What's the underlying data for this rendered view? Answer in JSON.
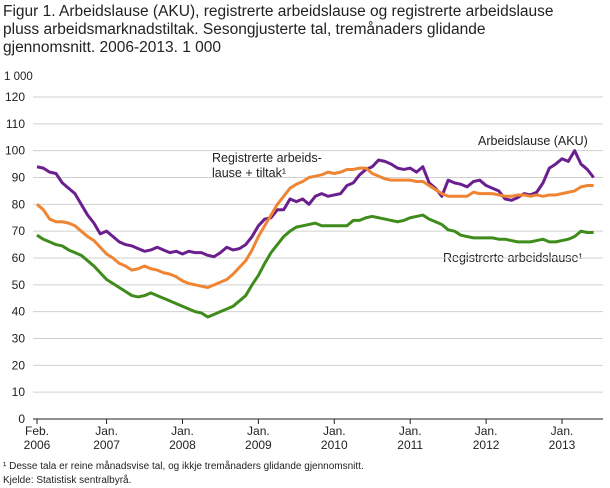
{
  "chart_data": {
    "type": "line",
    "title_lines": [
      "Figur 1. Arbeidslause (AKU), registrerte arbeidslause og registrerte arbeidslause",
      "pluss arbeidsmarknadstiltak. Sesongjusterte tal, tremånaders glidande",
      "gjennomsnitt. 2006-2013. 1 000"
    ],
    "y_unit": "1 000",
    "categories": [
      "Feb. 2006",
      null,
      null,
      null,
      null,
      null,
      null,
      null,
      null,
      null,
      null,
      "Jan. 2007",
      null,
      null,
      null,
      null,
      null,
      null,
      null,
      null,
      null,
      null,
      null,
      "Jan. 2008",
      null,
      null,
      null,
      null,
      null,
      null,
      null,
      null,
      null,
      null,
      null,
      "Jan. 2009",
      null,
      null,
      null,
      null,
      null,
      null,
      null,
      null,
      null,
      null,
      null,
      "Jan. 2010",
      null,
      null,
      null,
      null,
      null,
      null,
      null,
      null,
      null,
      null,
      null,
      "Jan. 2011",
      null,
      null,
      null,
      null,
      null,
      null,
      null,
      null,
      null,
      null,
      null,
      "Jan. 2012",
      null,
      null,
      null,
      null,
      null,
      null,
      null,
      null,
      null,
      null,
      null,
      "Jan. 2013",
      null,
      null,
      null,
      null,
      null
    ],
    "series": [
      {
        "name": "Arbeidslause (AKU)",
        "color": "#6b1f8f",
        "values": [
          94,
          93.5,
          92,
          91.5,
          88,
          86,
          84,
          80,
          76,
          73,
          69,
          70,
          68,
          66,
          65,
          64.5,
          63.5,
          62.5,
          63,
          64,
          63,
          62,
          62.5,
          61.5,
          62.5,
          62,
          62,
          61,
          60.5,
          62,
          64,
          63,
          63.5,
          65,
          68,
          72,
          74.5,
          75,
          78,
          78,
          82,
          81,
          82,
          80,
          83,
          84,
          83,
          83.5,
          84,
          87,
          88,
          91,
          93,
          94,
          96.5,
          96,
          95,
          93.5,
          93,
          93.5,
          92,
          94,
          88,
          86,
          83,
          89,
          88,
          87.5,
          86.5,
          88.5,
          89,
          87,
          86,
          85,
          82,
          81.5,
          82.5,
          84,
          83.5,
          84.5,
          88,
          93.5,
          95,
          97,
          96,
          100,
          95,
          93,
          90
        ]
      },
      {
        "name": "Registrerte arbeidslause + tiltak",
        "color": "#ef8533",
        "values": [
          80,
          78,
          74.5,
          73.5,
          73.5,
          73,
          72,
          70,
          68,
          66.5,
          64,
          61.5,
          60,
          58,
          57,
          55.5,
          56,
          57,
          56,
          55.5,
          54.5,
          54,
          53,
          51.5,
          50.5,
          50,
          49.5,
          49,
          50,
          51,
          52,
          54,
          56.5,
          59,
          63,
          68,
          72,
          76,
          80,
          83,
          86,
          87.5,
          88.5,
          90,
          90.5,
          91,
          92,
          91.5,
          92,
          93,
          93,
          93.5,
          93.5,
          91.5,
          90.5,
          89.5,
          89,
          89,
          89,
          89,
          88.5,
          88.5,
          87,
          85.5,
          84,
          83,
          83,
          83,
          83,
          84.5,
          84,
          84,
          84,
          83.5,
          83,
          83,
          83.5,
          83.5,
          83,
          83.5,
          83,
          83.5,
          83.5,
          84,
          84.5,
          85,
          86.5,
          87,
          87
        ]
      },
      {
        "name": "Registrerte arbeidslause",
        "color": "#3f8c1c",
        "values": [
          68.5,
          67,
          66,
          65,
          64.5,
          63,
          62,
          61,
          59,
          57,
          54.5,
          52,
          50.5,
          49,
          47.5,
          46,
          45.5,
          46,
          47,
          46,
          45,
          44,
          43,
          42,
          41,
          40,
          39.5,
          38,
          39,
          40,
          41,
          42,
          44,
          46,
          50,
          53.5,
          58,
          62,
          65,
          68,
          70,
          71.5,
          72,
          72.5,
          73,
          72,
          72,
          72,
          72,
          72,
          74,
          74,
          75,
          75.5,
          75,
          74.5,
          74,
          73.5,
          74,
          75,
          75.5,
          76,
          74.5,
          73.5,
          72.5,
          70.5,
          70,
          68.5,
          68,
          67.5,
          67.5,
          67.5,
          67.5,
          67,
          67,
          66.5,
          66,
          66,
          66,
          66.5,
          67,
          66,
          66,
          66.5,
          67,
          68,
          70,
          69.5,
          69.5
        ]
      }
    ],
    "annotations": [
      "Registrerte arbeids-",
      "lause + tiltak¹",
      "Arbeidslause (AKU)",
      "Registrerte arbeidslause¹"
    ],
    "ylim": [
      0,
      120
    ],
    "yticks": [
      0,
      10,
      20,
      30,
      40,
      50,
      60,
      70,
      80,
      90,
      100,
      110,
      120
    ],
    "grid": true,
    "footnotes": [
      "¹ Desse tala er reine månadsvise tal, og ikkje tremånaders glidande gjennomsnitt.",
      "Kjelde: Statistisk sentralbyrå."
    ]
  }
}
